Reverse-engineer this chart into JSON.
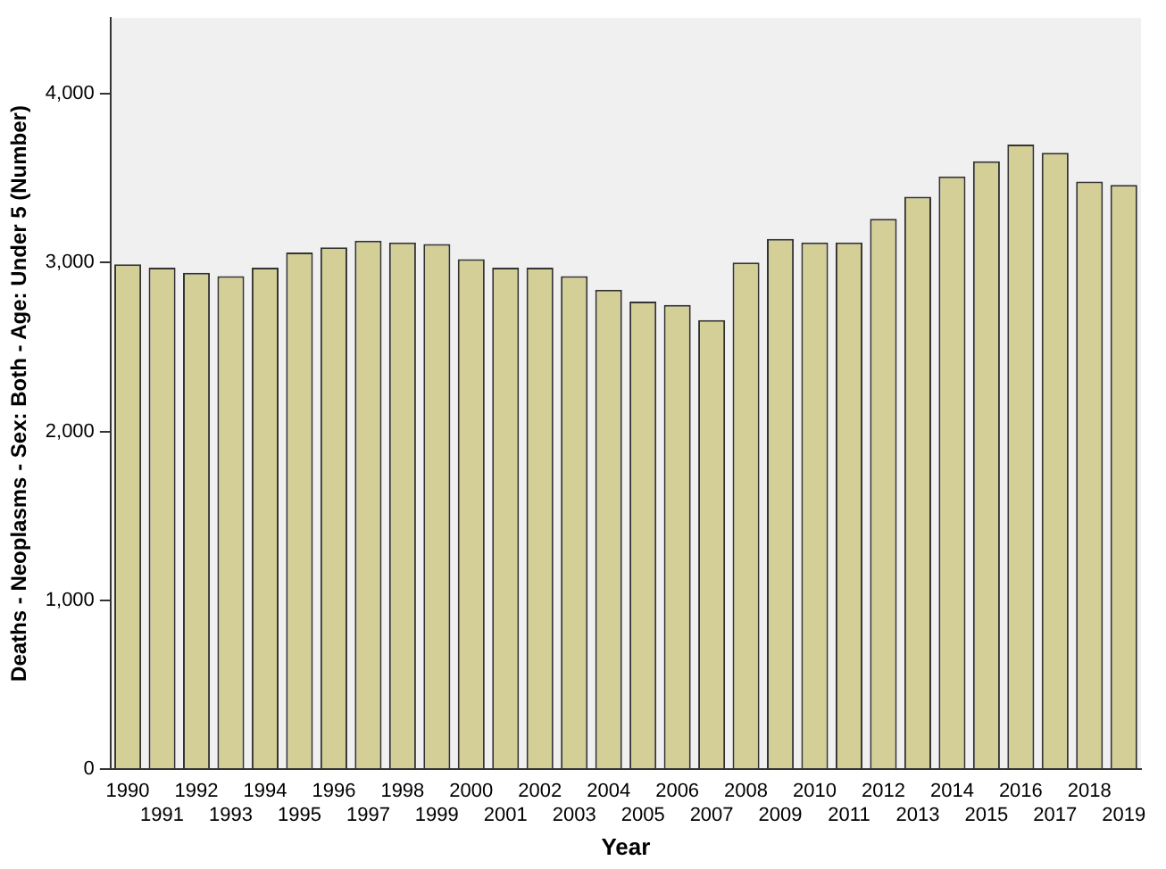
{
  "chart_data": {
    "type": "bar",
    "xlabel": "Year",
    "ylabel": "Deaths - Neoplasms - Sex: Both - Age: Under 5 (Number)",
    "categories": [
      "1990",
      "1991",
      "1992",
      "1993",
      "1994",
      "1995",
      "1996",
      "1997",
      "1998",
      "1999",
      "2000",
      "2001",
      "2002",
      "2003",
      "2004",
      "2005",
      "2006",
      "2007",
      "2008",
      "2009",
      "2010",
      "2011",
      "2012",
      "2013",
      "2014",
      "2015",
      "2016",
      "2017",
      "2018",
      "2019"
    ],
    "values": [
      2990,
      2970,
      2940,
      2920,
      2970,
      3060,
      3090,
      3130,
      3120,
      3110,
      3020,
      2970,
      2970,
      2920,
      2840,
      2770,
      2750,
      2660,
      3000,
      3140,
      3120,
      3120,
      3260,
      3390,
      3510,
      3600,
      3700,
      3650,
      3480,
      3460
    ],
    "color": "#d4cf96",
    "ylim": [
      0,
      4450
    ],
    "yticks": [
      0,
      {
        "value": 1000,
        "label": "1,000"
      },
      {
        "value": 2000,
        "label": "2,000"
      },
      {
        "value": 3000,
        "label": "3,000"
      },
      {
        "value": 4000,
        "label": "4,000"
      }
    ],
    "grid": false,
    "legend": false
  }
}
